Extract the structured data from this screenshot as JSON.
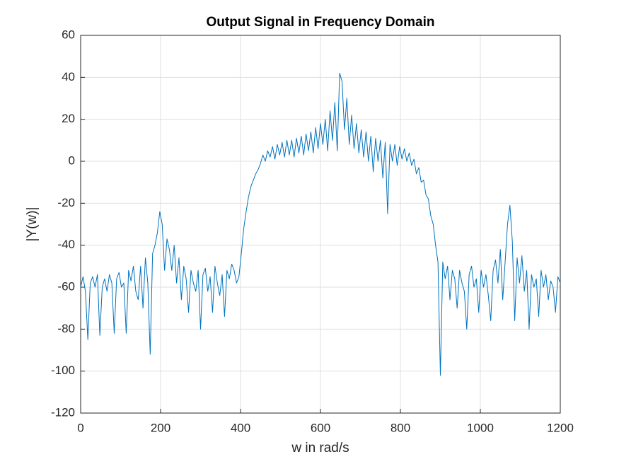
{
  "chart_data": {
    "type": "line",
    "title": "Output Signal in Frequency Domain",
    "xlabel": "w in rad/s",
    "ylabel": "|Y(w)|",
    "color": "#0072bd",
    "grid": true,
    "xlim": [
      0,
      1200
    ],
    "ylim": [
      -120,
      60
    ],
    "xticks": [
      0,
      200,
      400,
      600,
      800,
      1000,
      1200
    ],
    "yticks": [
      -120,
      -100,
      -80,
      -60,
      -40,
      -20,
      0,
      20,
      40,
      60
    ],
    "x": [
      0,
      6,
      12,
      18,
      24,
      30,
      36,
      42,
      48,
      54,
      60,
      66,
      72,
      78,
      84,
      90,
      96,
      102,
      108,
      114,
      120,
      126,
      132,
      138,
      144,
      150,
      156,
      162,
      168,
      174,
      180,
      186,
      192,
      198,
      204,
      210,
      216,
      222,
      228,
      234,
      240,
      246,
      252,
      258,
      264,
      270,
      276,
      282,
      288,
      294,
      300,
      306,
      312,
      318,
      324,
      330,
      336,
      342,
      348,
      354,
      360,
      366,
      372,
      378,
      384,
      390,
      396,
      402,
      408,
      414,
      420,
      426,
      432,
      438,
      444,
      450,
      456,
      462,
      468,
      474,
      480,
      486,
      492,
      498,
      504,
      510,
      516,
      522,
      528,
      534,
      540,
      546,
      552,
      558,
      564,
      570,
      576,
      582,
      588,
      594,
      600,
      606,
      612,
      618,
      624,
      630,
      636,
      642,
      648,
      654,
      660,
      666,
      672,
      678,
      684,
      690,
      696,
      702,
      708,
      714,
      720,
      726,
      732,
      738,
      744,
      750,
      756,
      762,
      768,
      774,
      780,
      786,
      792,
      798,
      804,
      810,
      816,
      822,
      828,
      834,
      840,
      846,
      852,
      858,
      864,
      870,
      876,
      882,
      888,
      894,
      900,
      906,
      912,
      918,
      924,
      930,
      936,
      942,
      948,
      954,
      960,
      966,
      972,
      978,
      984,
      990,
      996,
      1002,
      1008,
      1014,
      1020,
      1026,
      1032,
      1038,
      1044,
      1050,
      1056,
      1062,
      1068,
      1074,
      1080,
      1086,
      1092,
      1098,
      1104,
      1110,
      1116,
      1122,
      1128,
      1134,
      1140,
      1146,
      1152,
      1158,
      1164,
      1170,
      1176,
      1182,
      1188,
      1194,
      1200
    ],
    "values": [
      -60,
      -55,
      -62,
      -85,
      -58,
      -55,
      -60,
      -54,
      -83,
      -60,
      -56,
      -62,
      -54,
      -58,
      -82,
      -56,
      -53,
      -60,
      -58,
      -82,
      -52,
      -57,
      -50,
      -62,
      -66,
      -50,
      -70,
      -46,
      -58,
      -92,
      -44,
      -40,
      -34,
      -24,
      -30,
      -52,
      -37,
      -42,
      -52,
      -40,
      -58,
      -46,
      -66,
      -50,
      -56,
      -72,
      -52,
      -58,
      -62,
      -52,
      -80,
      -54,
      -51,
      -62,
      -55,
      -72,
      -50,
      -58,
      -64,
      -54,
      -74,
      -52,
      -56,
      -49,
      -52,
      -58,
      -55,
      -44,
      -32,
      -24,
      -17,
      -12,
      -9,
      -6,
      -4,
      -1,
      3,
      0,
      5,
      2,
      7,
      1,
      8,
      3,
      9,
      2,
      10,
      3,
      10,
      2,
      11,
      4,
      12,
      3,
      13,
      5,
      14,
      4,
      16,
      6,
      18,
      8,
      20,
      5,
      24,
      10,
      28,
      5,
      42,
      38,
      15,
      30,
      8,
      22,
      6,
      18,
      4,
      15,
      2,
      14,
      0,
      12,
      -5,
      11,
      0,
      10,
      -8,
      9,
      -25,
      8,
      0,
      8,
      -2,
      7,
      1,
      6,
      0,
      4,
      -2,
      1,
      -6,
      -3,
      -10,
      -9,
      -16,
      -18,
      -26,
      -30,
      -40,
      -48,
      -102,
      -48,
      -56,
      -50,
      -66,
      -52,
      -56,
      -70,
      -52,
      -58,
      -62,
      -80,
      -54,
      -50,
      -60,
      -56,
      -72,
      -52,
      -60,
      -54,
      -64,
      -76,
      -52,
      -47,
      -58,
      -42,
      -66,
      -48,
      -30,
      -21,
      -38,
      -76,
      -46,
      -58,
      -45,
      -62,
      -52,
      -80,
      -54,
      -60,
      -56,
      -74,
      -52,
      -60,
      -54,
      -66,
      -57,
      -60,
      -72,
      -55,
      -58
    ]
  }
}
